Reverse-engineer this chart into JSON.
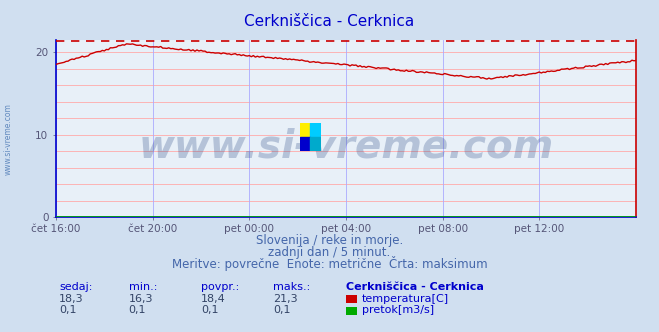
{
  "title": "Cerkniščica - Cerknica",
  "title_color": "#0000cc",
  "bg_color": "#d0dff0",
  "plot_bg_color": "#e8f0f8",
  "grid_color_h": "#ffaaaa",
  "grid_color_v": "#aaaaff",
  "xlabel_ticks": [
    "čet 16:00",
    "čet 20:00",
    "pet 00:00",
    "pet 04:00",
    "pet 08:00",
    "pet 12:00"
  ],
  "ymin": 0,
  "ymax": 21.5,
  "yticks": [
    0,
    10,
    20
  ],
  "temp_max_line": 21.3,
  "temp_color": "#cc0000",
  "flow_color": "#00aa00",
  "watermark_text": "www.si-vreme.com",
  "watermark_color": "#1a3a7a",
  "watermark_alpha": 0.25,
  "watermark_fontsize": 28,
  "subtitle1": "Slovenija / reke in morje.",
  "subtitle2": "zadnji dan / 5 minut.",
  "subtitle3": "Meritve: povrečne  Enote: metrične  Črta: maksimum",
  "subtitle_color": "#4466aa",
  "subtitle_fontsize": 8.5,
  "table_header": [
    "sedaj:",
    "min.:",
    "povpr.:",
    "maks.:",
    "Cerkniščica - Cerknica"
  ],
  "table_row1": [
    "18,3",
    "16,3",
    "18,4",
    "21,3",
    "temperatura[C]"
  ],
  "table_row2": [
    "0,1",
    "0,1",
    "0,1",
    "0,1",
    "pretok[m3/s]"
  ],
  "table_color": "#0000cc",
  "table_value_color": "#334466",
  "left_label": "www.si-vreme.com",
  "left_label_color": "#3366aa",
  "axis_color": "#0000cc",
  "spine_right_color": "#cc0000",
  "logo_colors": [
    "#ffee00",
    "#00ccff",
    "#0000cc",
    "#00aacc"
  ]
}
